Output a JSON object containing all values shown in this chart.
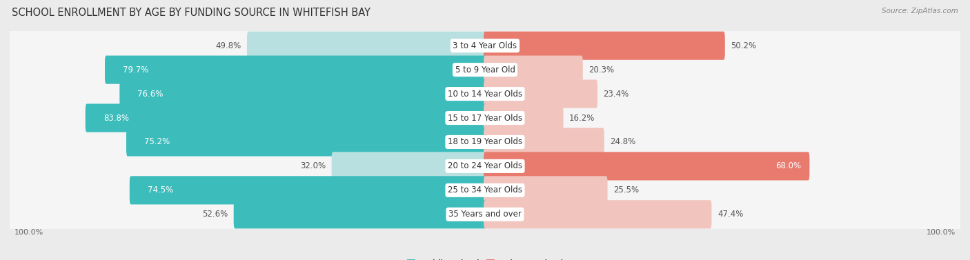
{
  "title": "SCHOOL ENROLLMENT BY AGE BY FUNDING SOURCE IN WHITEFISH BAY",
  "source": "Source: ZipAtlas.com",
  "categories": [
    "3 to 4 Year Olds",
    "5 to 9 Year Old",
    "10 to 14 Year Olds",
    "15 to 17 Year Olds",
    "18 to 19 Year Olds",
    "20 to 24 Year Olds",
    "25 to 34 Year Olds",
    "35 Years and over"
  ],
  "public_pct": [
    49.8,
    79.7,
    76.6,
    83.8,
    75.2,
    32.0,
    74.5,
    52.6
  ],
  "private_pct": [
    50.2,
    20.3,
    23.4,
    16.2,
    24.8,
    68.0,
    25.5,
    47.4
  ],
  "public_color": "#3dbcbc",
  "private_color": "#e87b6e",
  "public_color_light": "#b8e0e0",
  "private_color_light": "#f2c4be",
  "bg_color": "#ebebeb",
  "row_bg": "#f5f5f5",
  "title_fontsize": 10.5,
  "label_fontsize": 8.5,
  "legend_fontsize": 9,
  "axis_label_fontsize": 8,
  "pub_threshold": 50,
  "priv_threshold": 50
}
